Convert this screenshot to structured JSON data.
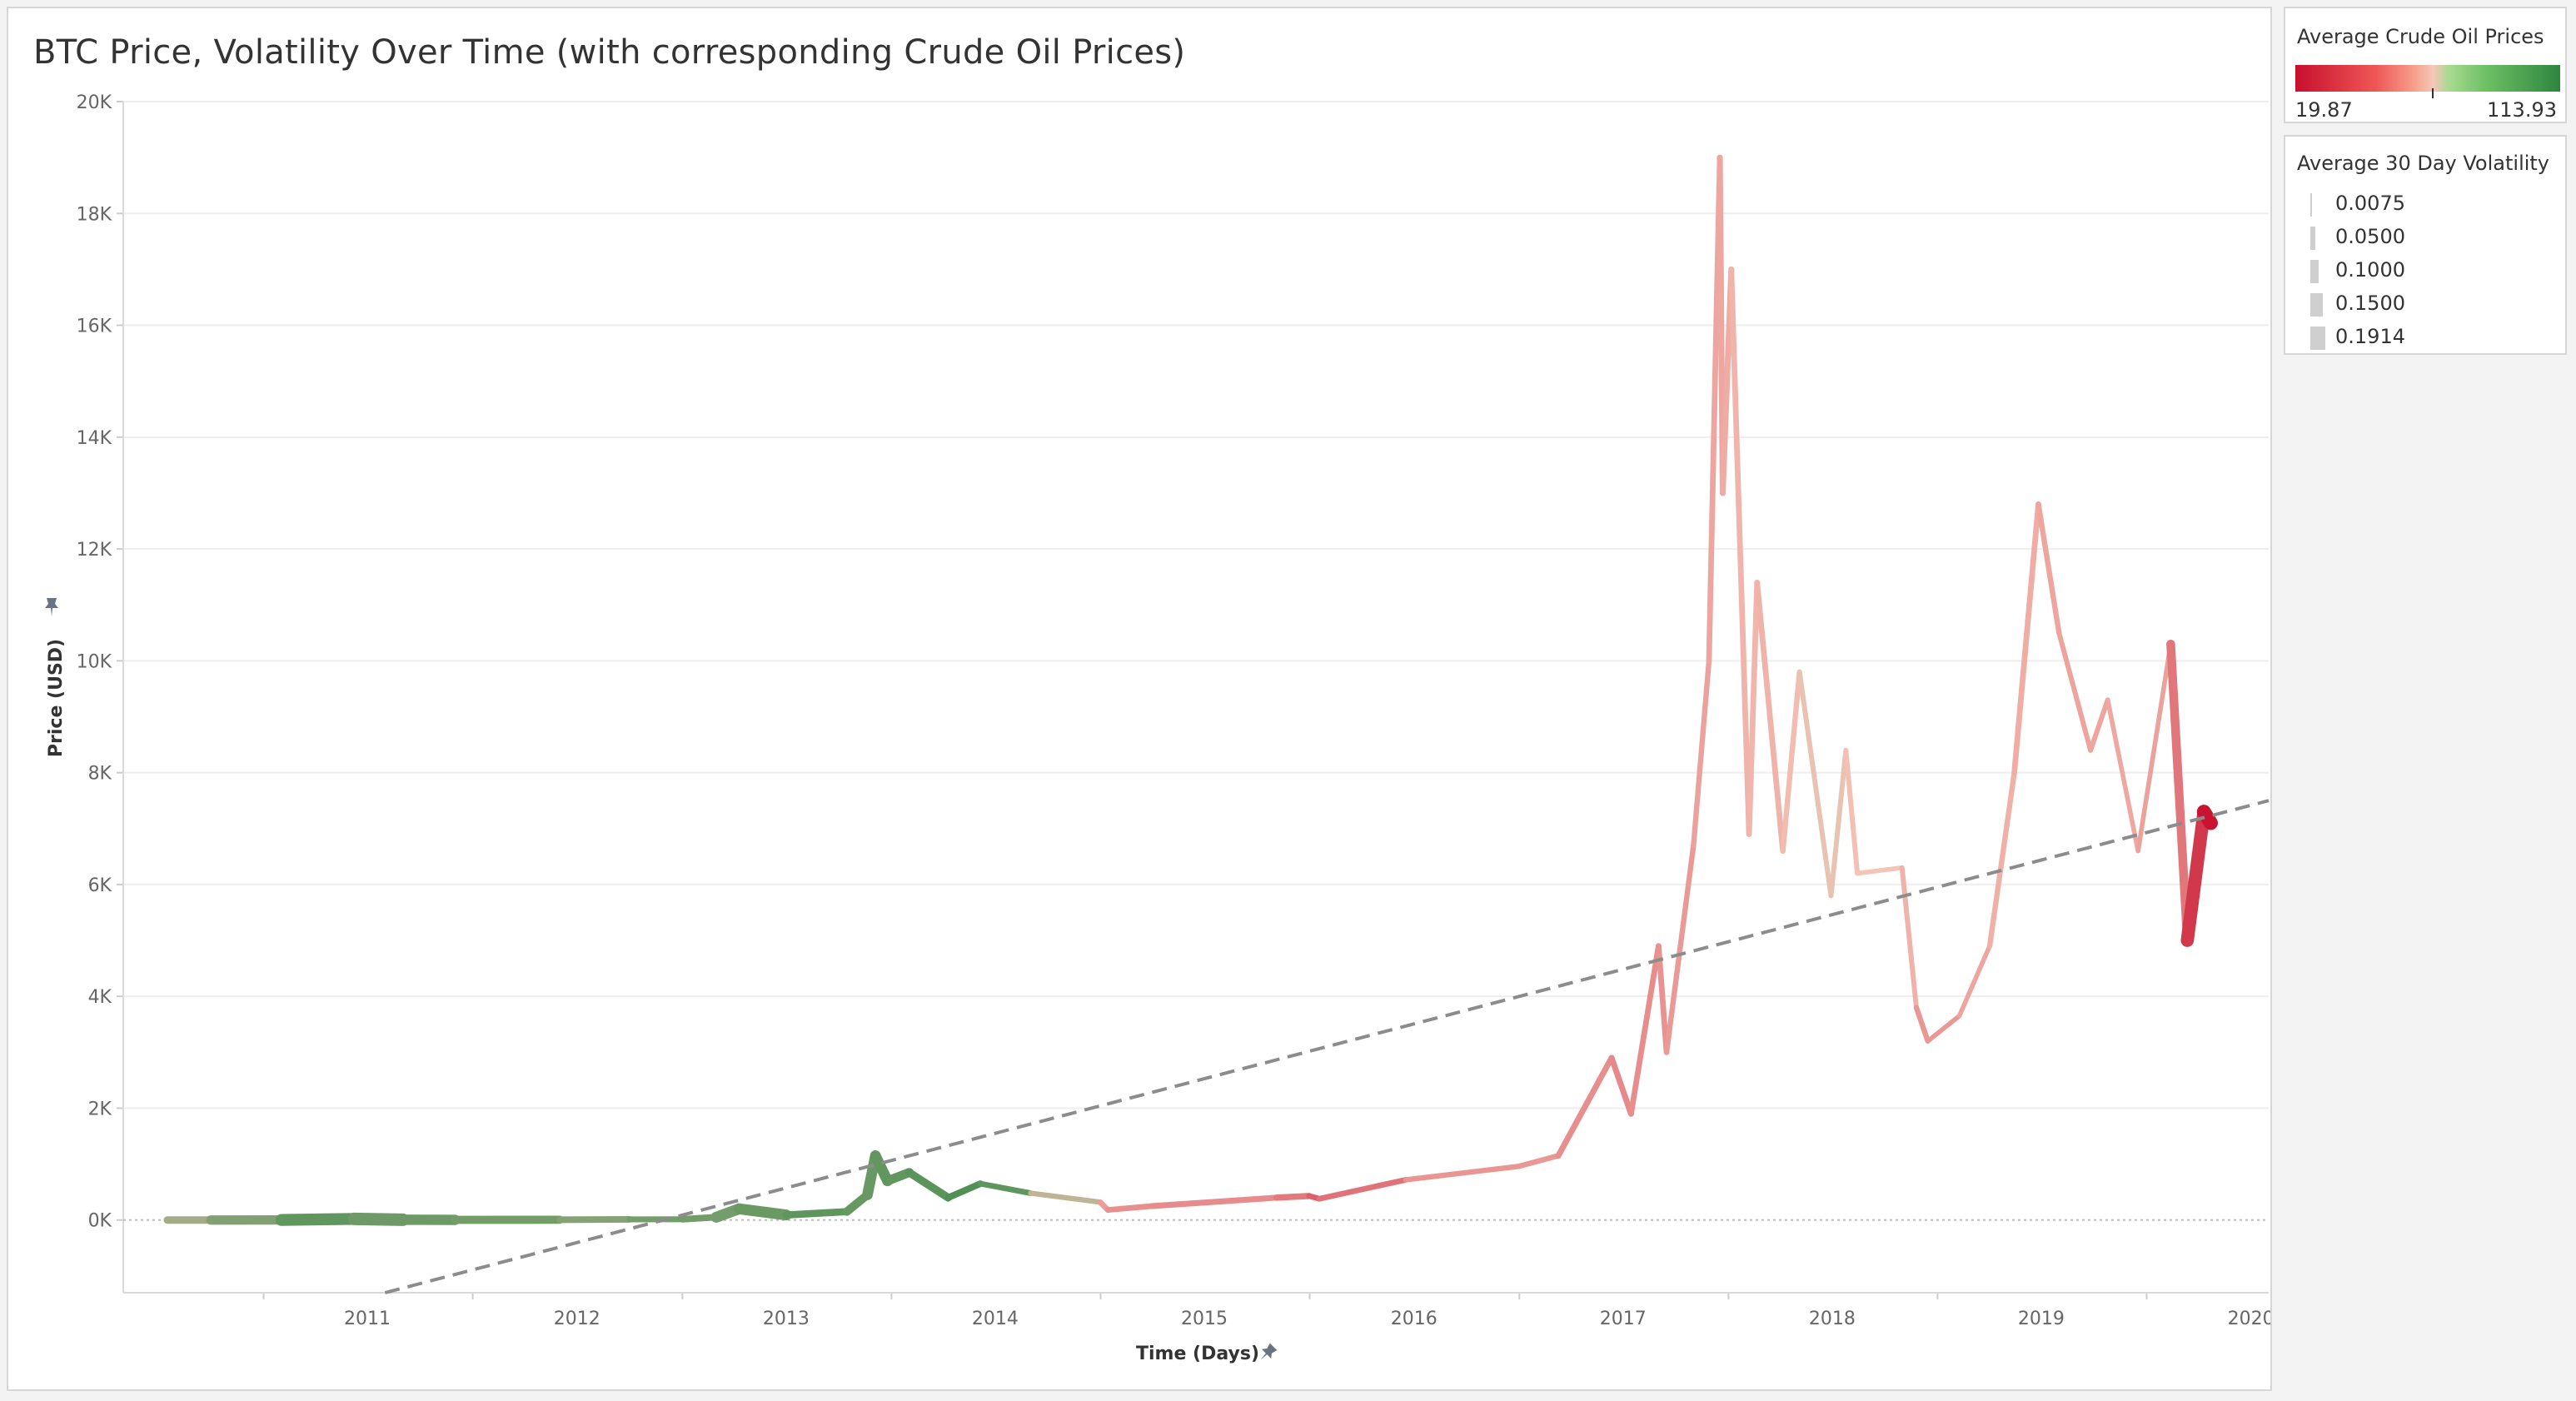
{
  "title": "BTC Price, Volatility Over Time (with corresponding Crude Oil Prices)",
  "legend_oil": {
    "title": "Average Crude Oil Prices",
    "min_label": "19.87",
    "max_label": "113.93",
    "min_color": "#c8102e",
    "mid_color": "#f5c7b8",
    "max_color": "#2e8540"
  },
  "legend_vol": {
    "title": "Average 30 Day Volatility",
    "items": [
      {
        "label": "0.0075",
        "value": 0.0075
      },
      {
        "label": "0.0500",
        "value": 0.05
      },
      {
        "label": "0.1000",
        "value": 0.1
      },
      {
        "label": "0.1500",
        "value": 0.15
      },
      {
        "label": "0.1914",
        "value": 0.1914
      }
    ]
  },
  "chart_data": {
    "type": "line",
    "title": "BTC Price, Volatility Over Time (with corresponding Crude Oil Prices)",
    "xlabel": "Time (Days)",
    "ylabel": "Price (USD)",
    "x_ticks": [
      "2011",
      "2012",
      "2013",
      "2014",
      "2015",
      "2016",
      "2017",
      "2018",
      "2019",
      "2020"
    ],
    "y_ticks": [
      "0K",
      "2K",
      "4K",
      "6K",
      "8K",
      "10K",
      "12K",
      "14K",
      "16K",
      "18K",
      "20K"
    ],
    "xlim": [
      "2010-05-01",
      "2020-08-01"
    ],
    "ylim": [
      -1300,
      20000
    ],
    "grid": true,
    "legend": "right",
    "series": [
      {
        "name": "BTC Price",
        "color_by": "Average Crude Oil Prices",
        "size_by": "Average 30 Day Volatility",
        "points": [
          [
            "2010-07-17",
            0,
            80,
            0.06
          ],
          [
            "2010-10-01",
            0,
            82,
            0.1
          ],
          [
            "2011-02-01",
            1,
            95,
            0.12
          ],
          [
            "2011-06-08",
            20,
            100,
            0.18
          ],
          [
            "2011-09-01",
            5,
            88,
            0.14
          ],
          [
            "2011-12-01",
            3,
            100,
            0.11
          ],
          [
            "2012-06-01",
            5,
            85,
            0.07
          ],
          [
            "2012-10-01",
            12,
            90,
            0.06
          ],
          [
            "2013-01-01",
            14,
            93,
            0.05
          ],
          [
            "2013-03-01",
            50,
            92,
            0.08
          ],
          [
            "2013-04-10",
            200,
            92,
            0.19
          ],
          [
            "2013-07-01",
            90,
            98,
            0.08
          ],
          [
            "2013-10-15",
            150,
            98,
            0.07
          ],
          [
            "2013-11-20",
            450,
            94,
            0.12
          ],
          [
            "2013-12-04",
            1150,
            97,
            0.14
          ],
          [
            "2013-12-25",
            700,
            98,
            0.12
          ],
          [
            "2014-02-01",
            850,
            97,
            0.09
          ],
          [
            "2014-04-10",
            400,
            102,
            0.08
          ],
          [
            "2014-06-05",
            650,
            103,
            0.05
          ],
          [
            "2014-09-01",
            480,
            93,
            0.05
          ],
          [
            "2014-12-31",
            320,
            60,
            0.04
          ],
          [
            "2015-01-14",
            180,
            47,
            0.06
          ],
          [
            "2015-04-01",
            250,
            50,
            0.04
          ],
          [
            "2015-11-04",
            400,
            44,
            0.07
          ],
          [
            "2015-12-31",
            430,
            37,
            0.05
          ],
          [
            "2016-01-18",
            380,
            29,
            0.05
          ],
          [
            "2016-06-17",
            720,
            48,
            0.05
          ],
          [
            "2016-12-31",
            960,
            53,
            0.04
          ],
          [
            "2017-03-10",
            1150,
            50,
            0.05
          ],
          [
            "2017-06-11",
            2900,
            46,
            0.06
          ],
          [
            "2017-07-15",
            1900,
            46,
            0.05
          ],
          [
            "2017-09-01",
            4900,
            49,
            0.05
          ],
          [
            "2017-09-15",
            3000,
            50,
            0.05
          ],
          [
            "2017-11-01",
            6700,
            54,
            0.04
          ],
          [
            "2017-11-28",
            10000,
            57,
            0.05
          ],
          [
            "2017-12-17",
            19000,
            57,
            0.05
          ],
          [
            "2017-12-22",
            13000,
            58,
            0.06
          ],
          [
            "2018-01-06",
            17000,
            61,
            0.05
          ],
          [
            "2018-02-06",
            6900,
            65,
            0.05
          ],
          [
            "2018-02-20",
            11400,
            62,
            0.05
          ],
          [
            "2018-04-06",
            6600,
            63,
            0.05
          ],
          [
            "2018-05-05",
            9800,
            70,
            0.04
          ],
          [
            "2018-06-29",
            5800,
            74,
            0.04
          ],
          [
            "2018-07-25",
            8400,
            70,
            0.04
          ],
          [
            "2018-08-14",
            6200,
            67,
            0.04
          ],
          [
            "2018-10-31",
            6300,
            73,
            0.03
          ],
          [
            "2018-11-25",
            3800,
            52,
            0.05
          ],
          [
            "2018-12-15",
            3200,
            50,
            0.04
          ],
          [
            "2019-02-08",
            3650,
            53,
            0.03
          ],
          [
            "2019-04-02",
            4900,
            61,
            0.04
          ],
          [
            "2019-05-15",
            8000,
            62,
            0.05
          ],
          [
            "2019-06-26",
            12800,
            58,
            0.05
          ],
          [
            "2019-08-01",
            10500,
            55,
            0.04
          ],
          [
            "2019-09-25",
            8400,
            57,
            0.04
          ],
          [
            "2019-10-25",
            9300,
            56,
            0.04
          ],
          [
            "2019-12-17",
            6600,
            60,
            0.03
          ],
          [
            "2020-02-12",
            10300,
            51,
            0.04
          ],
          [
            "2020-03-12",
            5000,
            28,
            0.16
          ],
          [
            "2020-04-10",
            7300,
            20,
            0.18
          ],
          [
            "2020-04-22",
            7100,
            19.87,
            0.19
          ]
        ]
      },
      {
        "name": "Trend",
        "style": "dashed",
        "points": [
          [
            "2011-08-01",
            -1300
          ],
          [
            "2020-08-01",
            7500
          ]
        ]
      },
      {
        "name": "Zero",
        "style": "dotted",
        "points": [
          [
            "2010-05-01",
            0
          ],
          [
            "2020-08-01",
            0
          ]
        ]
      }
    ]
  }
}
